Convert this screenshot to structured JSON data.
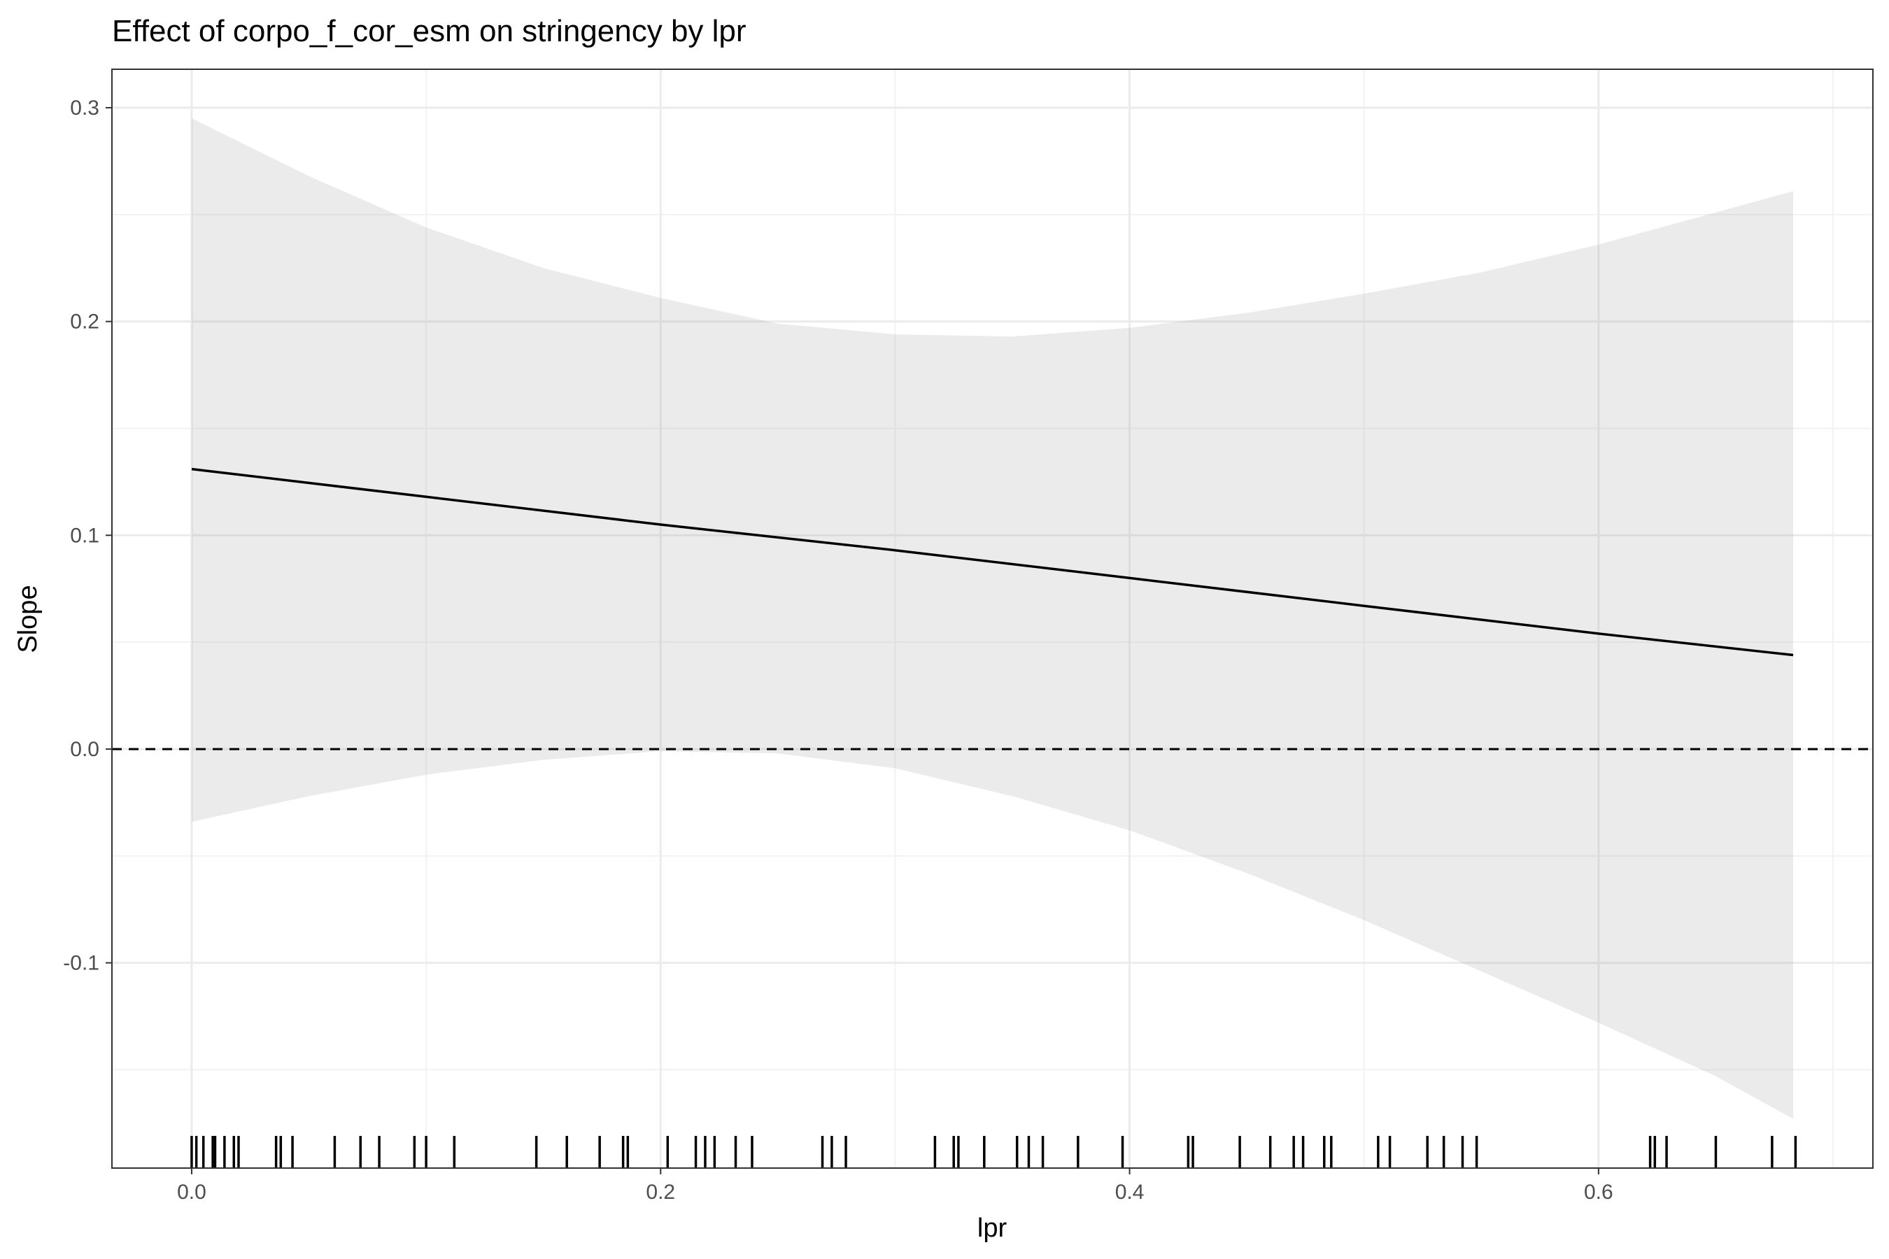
{
  "chart_data": {
    "type": "line",
    "title": "Effect of corpo_f_cor_esm on stringency by lpr",
    "xlabel": "lpr",
    "ylabel": "Slope",
    "xlim": [
      -0.034,
      0.717
    ],
    "ylim": [
      -0.196,
      0.318
    ],
    "x_ticks": [
      0.0,
      0.2,
      0.4,
      0.6
    ],
    "x_tick_labels": [
      "0.0",
      "0.2",
      "0.4",
      "0.6"
    ],
    "y_ticks": [
      -0.1,
      0.0,
      0.1,
      0.2,
      0.3
    ],
    "y_tick_labels": [
      "-0.1",
      "0.0",
      "0.1",
      "0.2",
      "0.3"
    ],
    "grid": true,
    "legend": "none",
    "reference_line": {
      "y": 0.0,
      "style": "dashed"
    },
    "series": [
      {
        "x": [
          0.0,
          0.1,
          0.2,
          0.3,
          0.4,
          0.5,
          0.6,
          0.683
        ],
        "y": [
          0.131,
          0.118,
          0.105,
          0.093,
          0.08,
          0.067,
          0.054,
          0.044
        ]
      }
    ],
    "ribbon": {
      "x": [
        0.0,
        0.05,
        0.1,
        0.15,
        0.2,
        0.25,
        0.3,
        0.35,
        0.4,
        0.45,
        0.5,
        0.55,
        0.6,
        0.65,
        0.683
      ],
      "upper": [
        0.295,
        0.268,
        0.244,
        0.225,
        0.211,
        0.199,
        0.194,
        0.193,
        0.197,
        0.204,
        0.213,
        0.223,
        0.236,
        0.251,
        0.261
      ],
      "lower": [
        -0.034,
        -0.022,
        -0.012,
        -0.005,
        -0.001,
        -0.002,
        -0.009,
        -0.022,
        -0.038,
        -0.058,
        -0.08,
        -0.104,
        -0.128,
        -0.153,
        -0.173
      ]
    },
    "rug": [
      0.0,
      0.002,
      0.005,
      0.009,
      0.01,
      0.014,
      0.018,
      0.02,
      0.036,
      0.038,
      0.043,
      0.061,
      0.072,
      0.08,
      0.095,
      0.1,
      0.112,
      0.147,
      0.16,
      0.174,
      0.184,
      0.186,
      0.203,
      0.215,
      0.219,
      0.223,
      0.232,
      0.239,
      0.269,
      0.273,
      0.279,
      0.317,
      0.325,
      0.327,
      0.338,
      0.352,
      0.357,
      0.363,
      0.378,
      0.397,
      0.425,
      0.427,
      0.447,
      0.46,
      0.47,
      0.474,
      0.483,
      0.486,
      0.506,
      0.511,
      0.527,
      0.534,
      0.542,
      0.548,
      0.622,
      0.624,
      0.629,
      0.65,
      0.674,
      0.684
    ]
  }
}
